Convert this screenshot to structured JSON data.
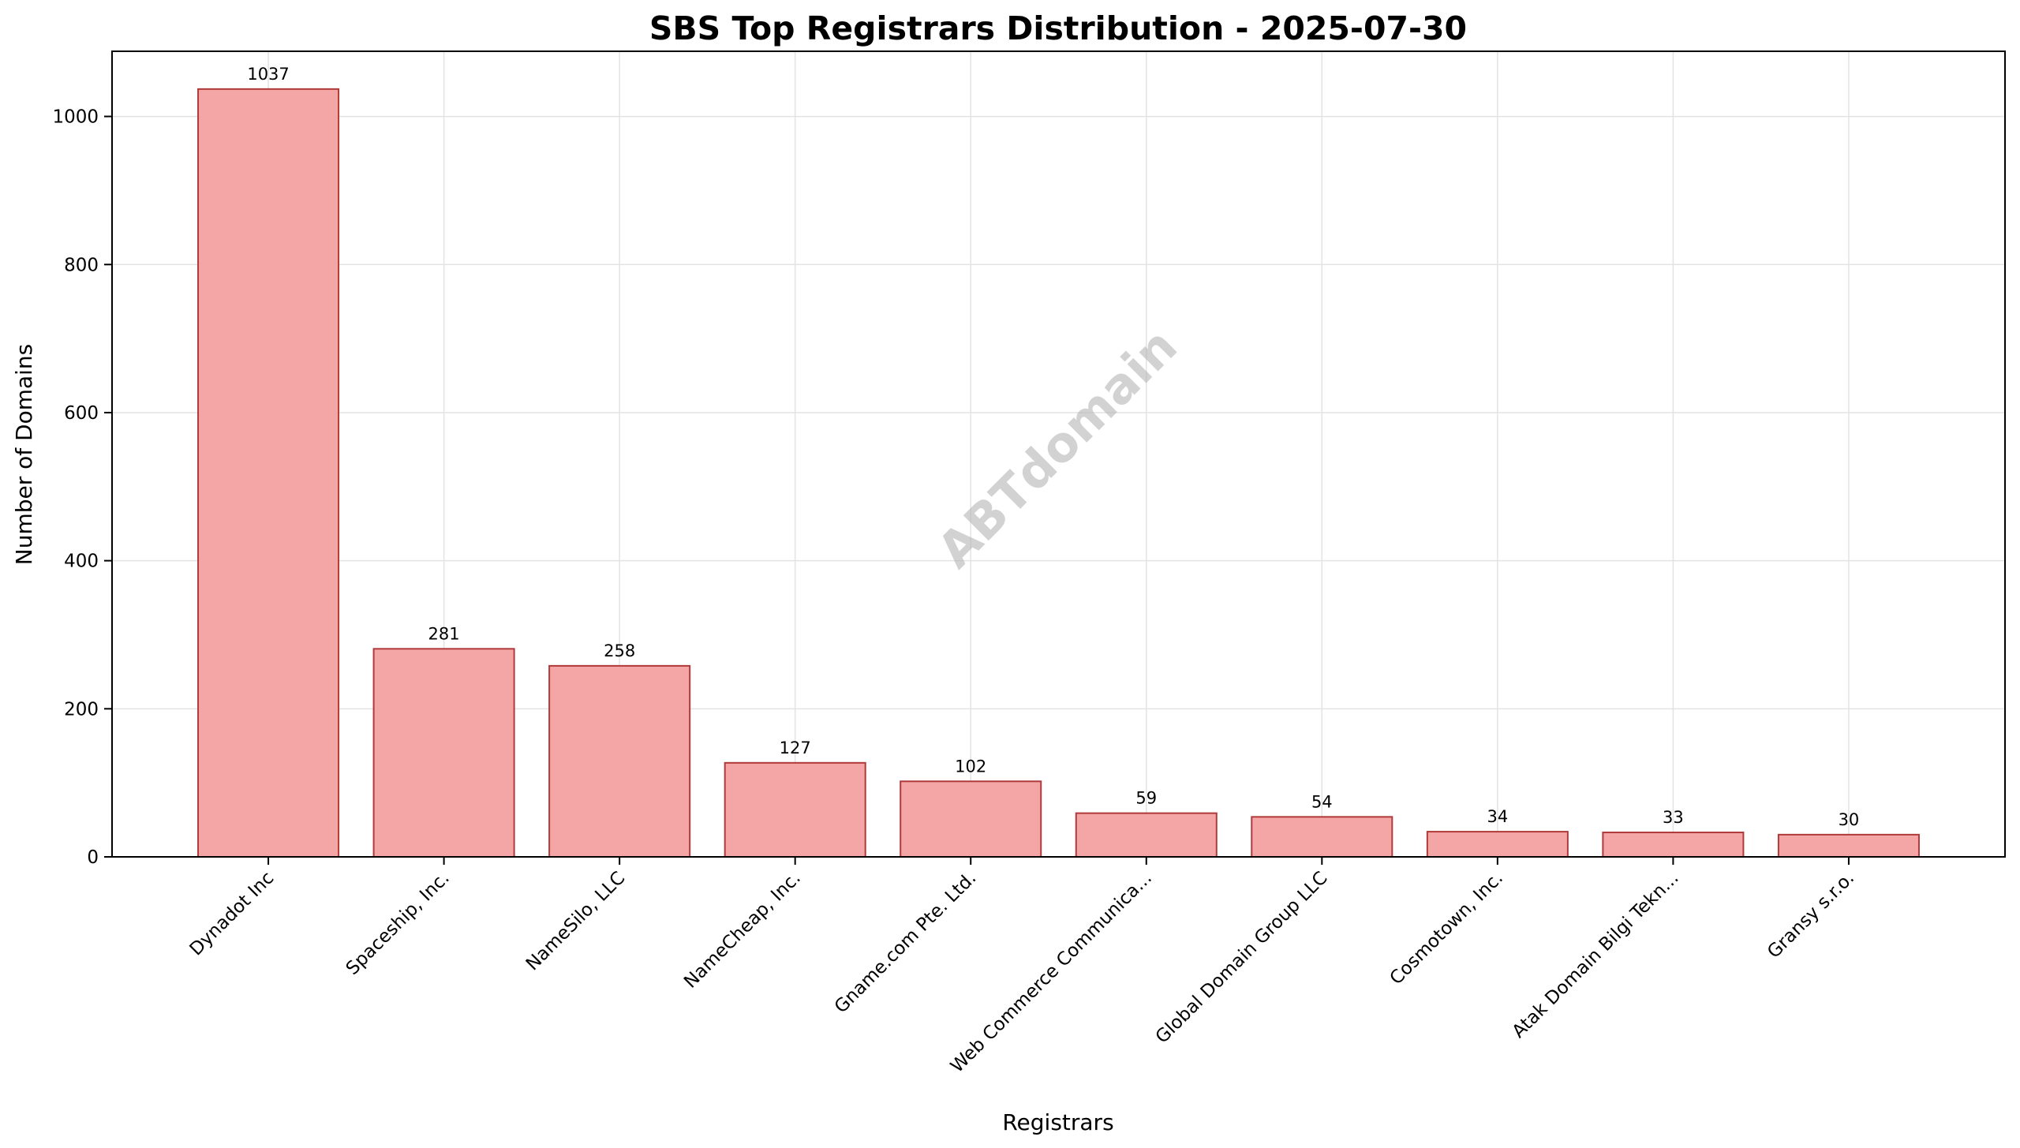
{
  "chart_data": {
    "type": "bar",
    "title": "SBS Top Registrars Distribution - 2025-07-30",
    "xlabel": "Registrars",
    "ylabel": "Number of Domains",
    "categories": [
      "Dynadot Inc",
      "Spaceship, Inc.",
      "NameSilo, LLC",
      "NameCheap, Inc.",
      "Gname.com Pte. Ltd.",
      "Web Commerce Communica...",
      "Global Domain Group LLC",
      "Cosmotown, Inc.",
      "Atak Domain Bilgi Tekn...",
      "Gransy s.r.o."
    ],
    "values": [
      1037,
      281,
      258,
      127,
      102,
      59,
      54,
      34,
      33,
      30
    ],
    "ylim": [
      0,
      1088
    ],
    "yticks": [
      0,
      200,
      400,
      600,
      800,
      1000
    ],
    "grid": true,
    "bar_color": "#f4a6a6",
    "bar_edge_color": "#b03a3a",
    "watermark": "ABTdomain"
  }
}
